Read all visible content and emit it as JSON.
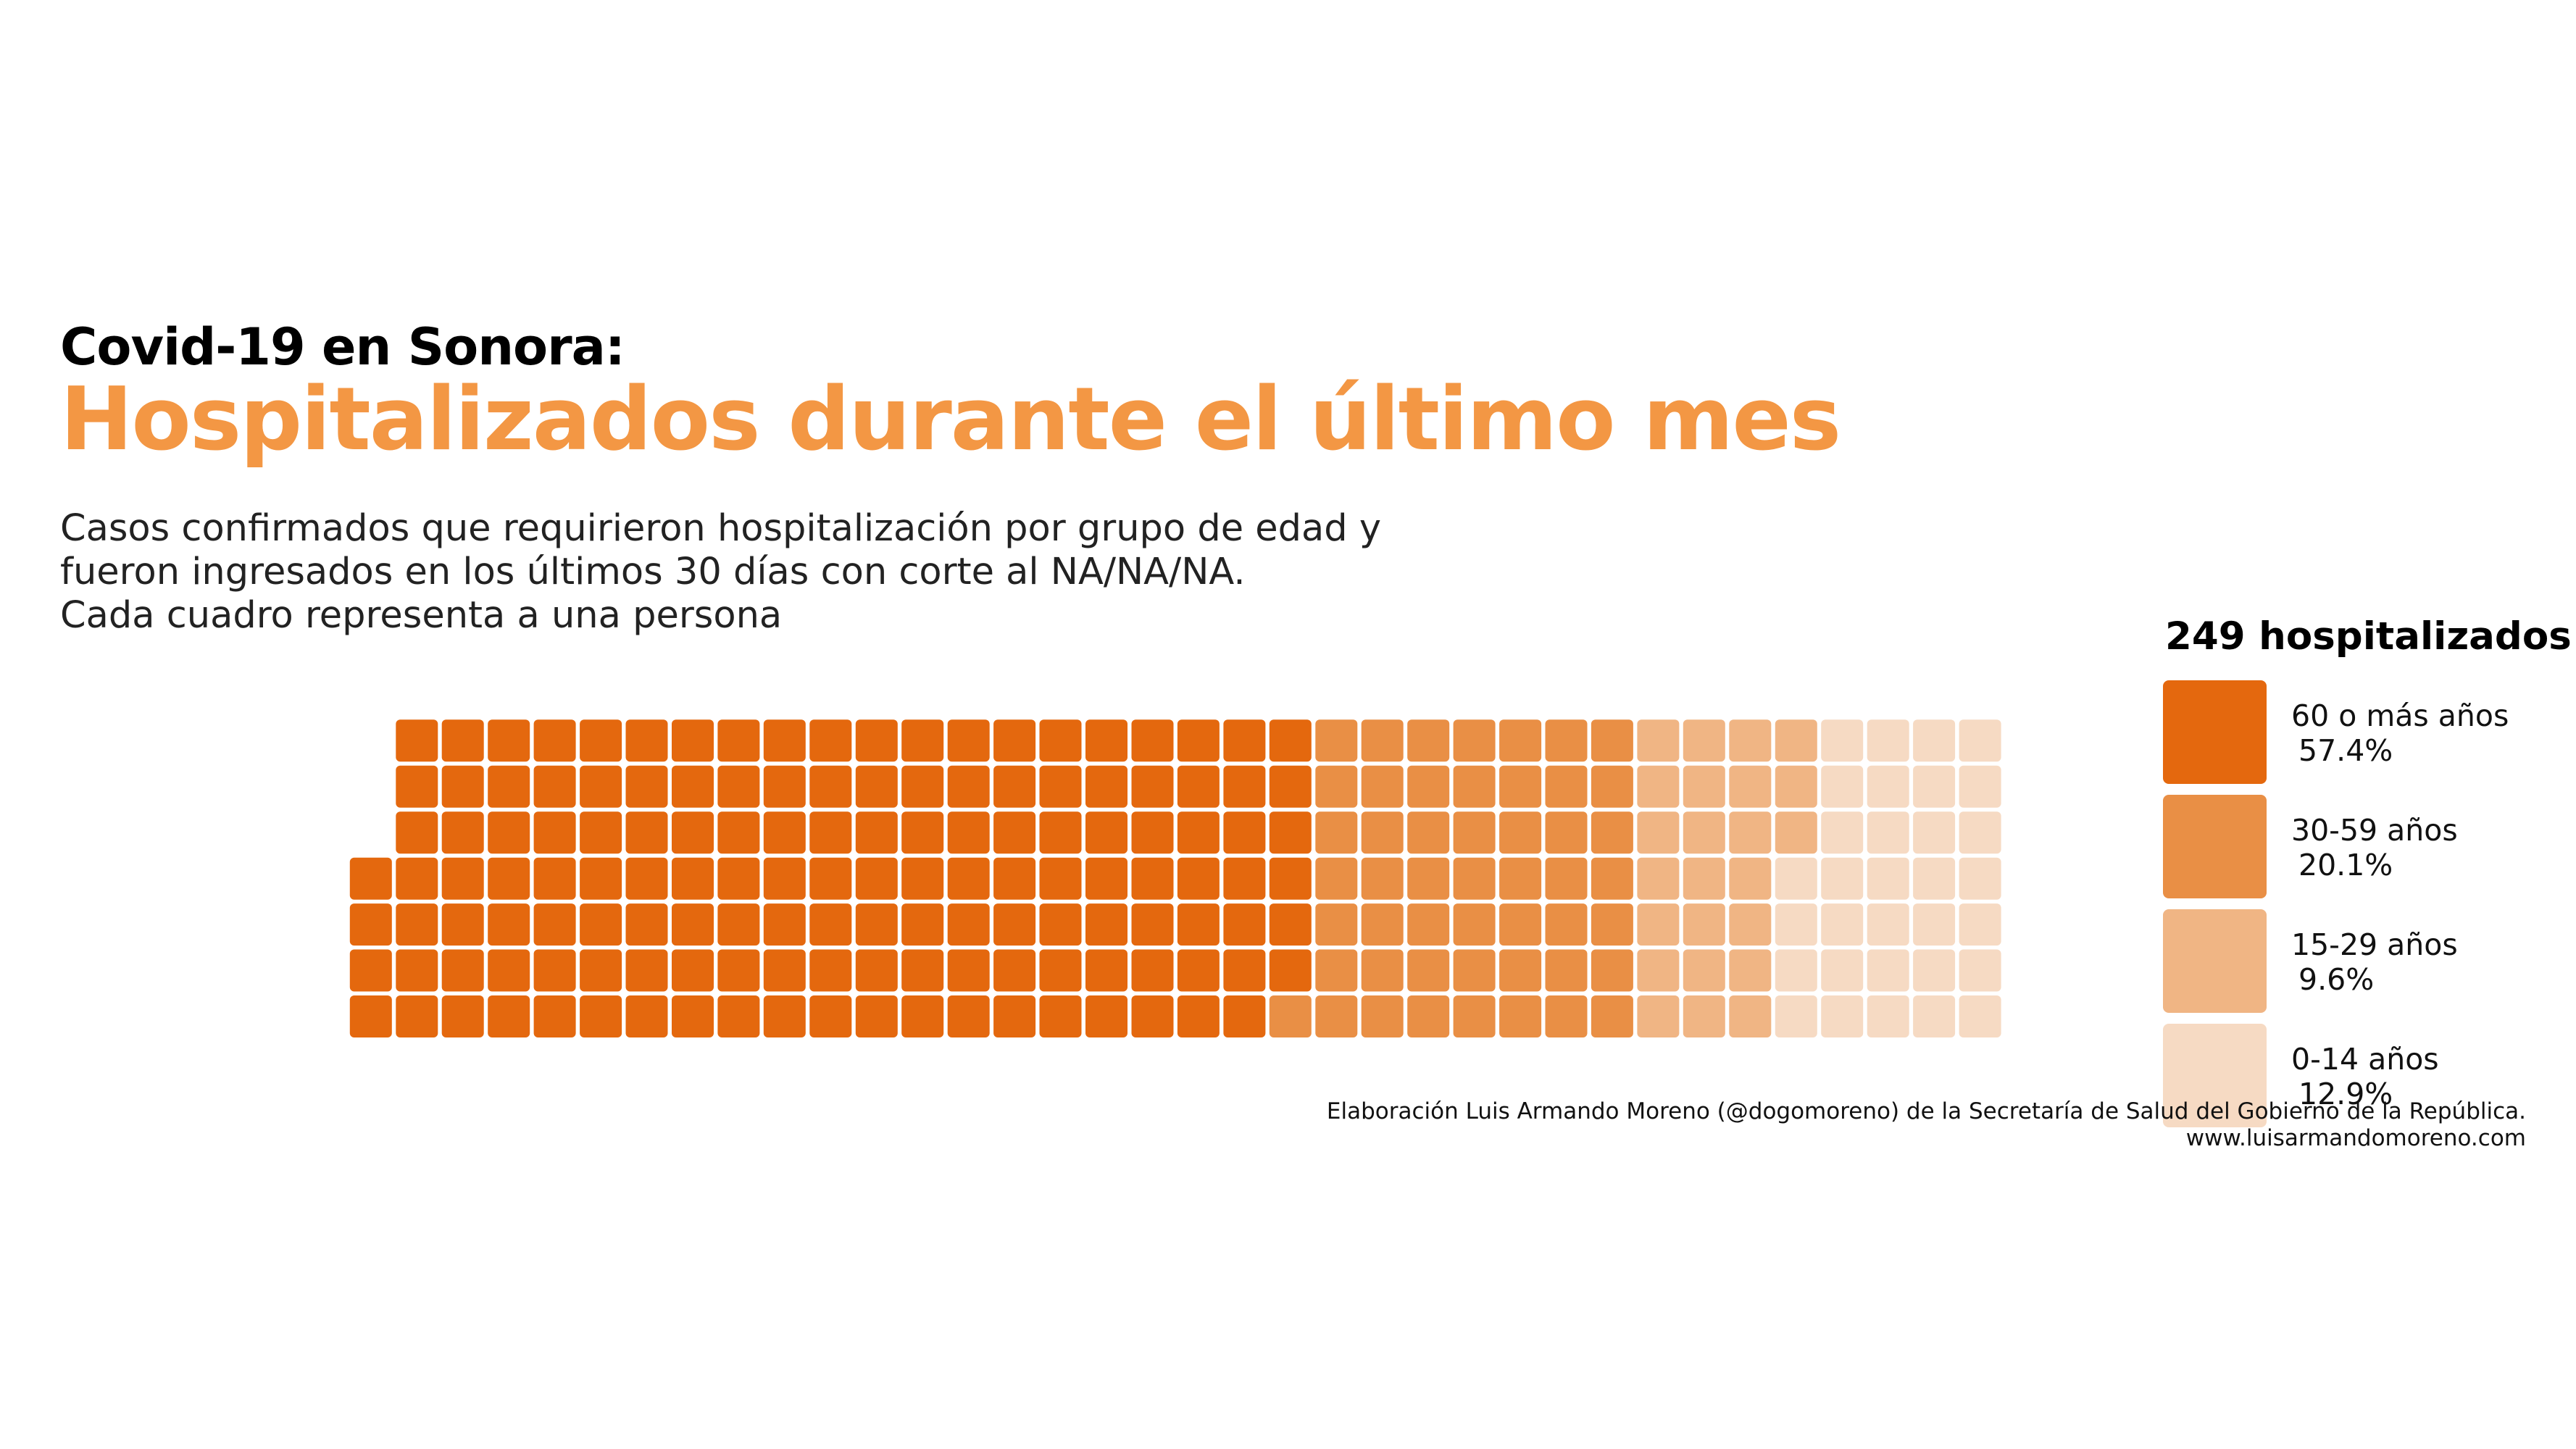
{
  "header": {
    "suptitle": "Covid-19 en Sonora:",
    "title": "Hospitalizados durante el último mes",
    "subtitle_lines": [
      "Casos confirmados que requirieron hospitalización por grupo de edad y",
      "fueron ingresados en los últimos 30 días con corte al NA/NA/NA.",
      "Cada cuadro representa a una persona"
    ]
  },
  "legend": {
    "total": "249 hospitalizados",
    "items": [
      {
        "label": "60 o más años",
        "pct": "57.4%",
        "color": "#E4680E"
      },
      {
        "label": "30-59 años",
        "pct": "20.1%",
        "color": "#E98F45"
      },
      {
        "label": "15-29 años",
        "pct": "9.6%",
        "color": "#F0B584"
      },
      {
        "label": "0-14 años",
        "pct": "12.9%",
        "color": "#F6DAC3"
      }
    ]
  },
  "caption": {
    "line1": "Elaboración Luis Armando Moreno (@dogomoreno) de la Secretaría de Salud del Gobierno de la República.",
    "line2": "www.luisarmandomoreno.com"
  },
  "chart_data": {
    "type": "waffle",
    "unit": "1 cuadro = 1 persona",
    "total": 249,
    "categories": [
      "0-14 años",
      "15-29 años",
      "30-59 años",
      "60 o más años"
    ],
    "values": [
      32,
      24,
      50,
      143
    ],
    "percent": [
      12.9,
      9.6,
      20.1,
      57.4
    ],
    "colors": [
      "#F6DAC3",
      "#F0B584",
      "#E98F45",
      "#E4680E"
    ],
    "grid_columns": 40,
    "fill_order": "column-major, bottom-to-top, left-to-right",
    "reverse_fill_order": true
  }
}
